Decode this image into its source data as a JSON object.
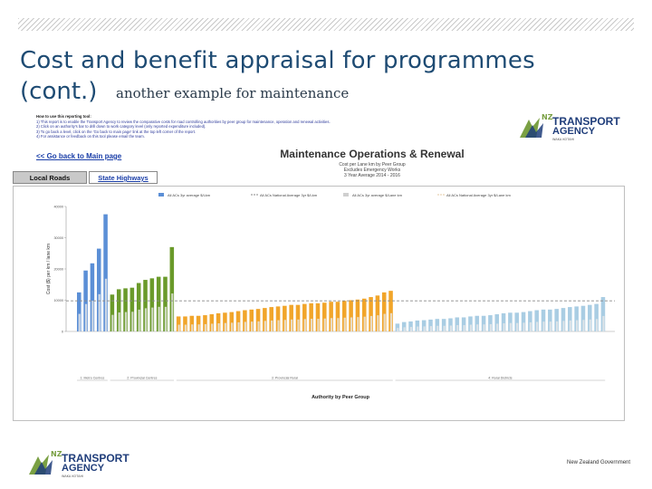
{
  "slide": {
    "title_line1": "Cost and benefit appraisal for programmes",
    "title_line2": "(cont.)",
    "subtitle": "another example for maintenance"
  },
  "notes": {
    "heading": "How to use this reporting tool:",
    "lines": [
      "1) This report is to enable the Transport Agency to review the comparative costs for road controlling authorities by peer group for maintenance, operation and renewal activities.",
      "2) Click on an authority's bar to drill down to work category level (only reported expenditure included).",
      "3) To go back a level, click on the 'Go back to main page' link at the top left corner of the report.",
      "4) For assistance or feedback on this tool please email the team."
    ],
    "back_link": "<< Go back to Main page"
  },
  "tabs": [
    {
      "label": "Local Roads",
      "selected": true
    },
    {
      "label": "State Highways",
      "selected": false
    }
  ],
  "report": {
    "title": "Maintenance Operations & Renewal",
    "sub1": "Cost per Lane km by Peer Group",
    "sub2": "Excludes Emergency Works",
    "sub3": "3 Year Average 2014 - 2016"
  },
  "logo": {
    "nz": "NZ",
    "transport": "TRANSPORT",
    "agency": "AGENCY",
    "maori": "WAKA KOTAHI"
  },
  "footer": {
    "gov": "New Zealand Government"
  },
  "colors": {
    "title": "#1e4b73",
    "blue": "#5b8fd6",
    "green": "#6a9a2a",
    "orange": "#f1a52a",
    "lightblue": "#a9cde3",
    "natavg": "#8a8a8a"
  },
  "chart_data": {
    "type": "bar",
    "ylabel": "Cost ($) per km / lane km",
    "xlabel": "Authority by Peer Group",
    "ylim": [
      0,
      40000
    ],
    "yticks": [
      0,
      10000,
      20000,
      30000,
      40000
    ],
    "legend": [
      "All ACs 3yr average $/Lkm",
      "All ACs National Average 3yr $/Lkm",
      "All ACs 3yr average $/Lane km",
      "All ACs National Average 3yr $/Lane km"
    ],
    "national_average": 9800,
    "groups": [
      {
        "name": "1: Metro Centres",
        "color": "#5b8fd6",
        "values": [
          12500,
          19500,
          21800,
          26500,
          37500
        ]
      },
      {
        "name": "2: Provincial Centres",
        "color": "#6a9a2a",
        "values": [
          11800,
          13500,
          13800,
          14000,
          15500,
          16500,
          17000,
          17500,
          17500,
          27000
        ]
      },
      {
        "name": "3: Provincial Rural",
        "color": "#f1a52a",
        "values": [
          4800,
          4800,
          5000,
          5000,
          5200,
          5500,
          5800,
          6000,
          6200,
          6500,
          6800,
          7000,
          7200,
          7500,
          7800,
          8000,
          8200,
          8500,
          8500,
          8800,
          9000,
          9000,
          9200,
          9500,
          9500,
          9800,
          10000,
          10200,
          10500,
          11000,
          11500,
          12500,
          13000
        ]
      },
      {
        "name": "4: Rural Districts",
        "color": "#a9cde3",
        "values": [
          2500,
          3000,
          3200,
          3500,
          3600,
          3800,
          4000,
          4000,
          4200,
          4500,
          4500,
          4800,
          5000,
          5000,
          5200,
          5500,
          5800,
          6000,
          6000,
          6200,
          6500,
          6800,
          7000,
          7000,
          7200,
          7500,
          7800,
          8000,
          8200,
          8500,
          8800,
          11000
        ]
      }
    ]
  }
}
